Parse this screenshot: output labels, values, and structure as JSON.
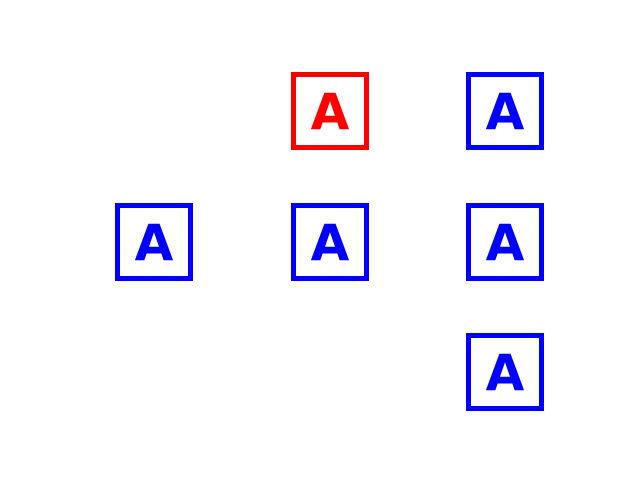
{
  "colors": {
    "default": "#0000ff",
    "highlight": "#ff0000",
    "background": "#ffffff"
  },
  "tiles": [
    {
      "label": "A",
      "color": "red",
      "row": 1,
      "col": 2
    },
    {
      "label": "A",
      "color": "blue",
      "row": 1,
      "col": 3
    },
    {
      "label": "A",
      "color": "blue",
      "row": 2,
      "col": 1
    },
    {
      "label": "A",
      "color": "blue",
      "row": 2,
      "col": 2
    },
    {
      "label": "A",
      "color": "blue",
      "row": 2,
      "col": 3
    },
    {
      "label": "A",
      "color": "blue",
      "row": 3,
      "col": 3
    }
  ]
}
